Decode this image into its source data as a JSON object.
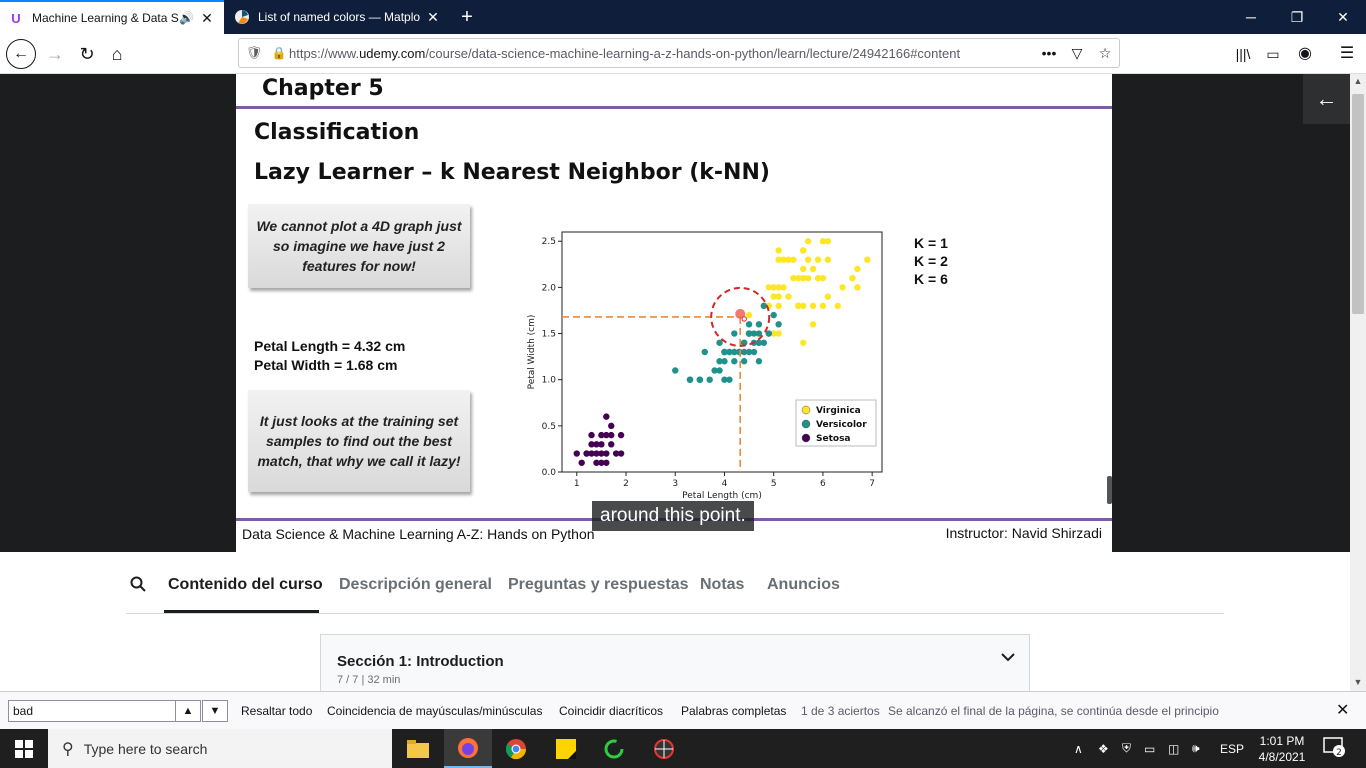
{
  "browser": {
    "tabs": [
      {
        "title": "Machine Learning & Data Sc",
        "favicon": "U",
        "favicon_color": "#a435f0"
      },
      {
        "title": "List of named colors — Matplo",
        "favicon": "matplotlib-icon"
      }
    ],
    "url_prefix": "https://www.",
    "url_host": "udemy.com",
    "url_path": "/course/data-science-machine-learning-a-z-hands-on-python/learn/lecture/24942166#content",
    "more_label": "•••"
  },
  "slide": {
    "chapter": "Chapter 5",
    "title": "Classification",
    "subtitle": "Lazy Learner – k Nearest Neighbor (k-NN)",
    "callout1": "We cannot plot a 4D graph just so imagine we have just 2 features for now!",
    "petal_length": "Petal Length = 4.32 cm",
    "petal_width": "Petal Width = 1.68 cm",
    "callout2": "It just looks at the training set samples to find out the best match, that why we call it lazy!",
    "k_values": [
      "K = 1",
      "K = 2",
      "K = 6"
    ],
    "footer_left": "Data Science & Machine Learning A-Z: Hands on Python",
    "footer_right": "Instructor: Navid Shirzadi"
  },
  "chart_data": {
    "type": "scatter",
    "xlabel": "Petal Length (cm)",
    "ylabel": "Petal Width (cm)",
    "xlim": [
      0.7,
      7.2
    ],
    "ylim": [
      0.0,
      2.6
    ],
    "xticks": [
      "1",
      "2",
      "3",
      "4",
      "5",
      "6",
      "7"
    ],
    "yticks": [
      "0.0",
      "0.5",
      "1.0",
      "1.5",
      "2.0",
      "2.5"
    ],
    "legend_position": "lower-right",
    "query_point": {
      "x": 4.32,
      "y": 1.68
    },
    "series": [
      {
        "name": "Virginica",
        "color": "#fde725",
        "points": [
          [
            6.0,
            2.5
          ],
          [
            5.1,
            1.9
          ],
          [
            5.9,
            2.1
          ],
          [
            5.6,
            1.8
          ],
          [
            5.8,
            2.2
          ],
          [
            6.6,
            2.1
          ],
          [
            4.5,
            1.7
          ],
          [
            6.3,
            1.8
          ],
          [
            5.8,
            1.8
          ],
          [
            6.1,
            2.5
          ],
          [
            5.1,
            2.0
          ],
          [
            5.3,
            1.9
          ],
          [
            5.5,
            2.1
          ],
          [
            5.0,
            2.0
          ],
          [
            5.1,
            2.4
          ],
          [
            5.3,
            2.3
          ],
          [
            5.5,
            1.8
          ],
          [
            6.7,
            2.2
          ],
          [
            6.9,
            2.3
          ],
          [
            5.0,
            1.5
          ],
          [
            5.7,
            2.3
          ],
          [
            4.9,
            2.0
          ],
          [
            6.7,
            2.0
          ],
          [
            4.9,
            1.8
          ],
          [
            5.7,
            2.1
          ],
          [
            6.0,
            1.8
          ],
          [
            4.8,
            1.8
          ],
          [
            4.9,
            1.8
          ],
          [
            5.6,
            2.1
          ],
          [
            5.8,
            1.6
          ],
          [
            6.1,
            1.9
          ],
          [
            6.4,
            2.0
          ],
          [
            5.6,
            2.2
          ],
          [
            5.1,
            1.5
          ],
          [
            5.6,
            1.4
          ],
          [
            6.1,
            2.3
          ],
          [
            5.6,
            2.4
          ],
          [
            5.5,
            1.8
          ],
          [
            4.8,
            1.8
          ],
          [
            5.4,
            2.1
          ],
          [
            5.6,
            2.4
          ],
          [
            5.1,
            2.3
          ],
          [
            5.9,
            2.3
          ],
          [
            5.7,
            2.5
          ],
          [
            5.2,
            2.3
          ],
          [
            5.0,
            1.9
          ],
          [
            5.2,
            2.0
          ],
          [
            5.4,
            2.3
          ],
          [
            5.1,
            1.8
          ],
          [
            6.0,
            2.1
          ]
        ]
      },
      {
        "name": "Versicolor",
        "color": "#21918c",
        "points": [
          [
            4.7,
            1.4
          ],
          [
            4.5,
            1.5
          ],
          [
            4.9,
            1.5
          ],
          [
            4.0,
            1.3
          ],
          [
            4.6,
            1.5
          ],
          [
            4.5,
            1.3
          ],
          [
            4.7,
            1.6
          ],
          [
            3.3,
            1.0
          ],
          [
            4.6,
            1.3
          ],
          [
            3.9,
            1.4
          ],
          [
            3.5,
            1.0
          ],
          [
            4.2,
            1.5
          ],
          [
            4.0,
            1.0
          ],
          [
            4.7,
            1.4
          ],
          [
            3.6,
            1.3
          ],
          [
            4.4,
            1.4
          ],
          [
            4.5,
            1.5
          ],
          [
            4.1,
            1.0
          ],
          [
            4.5,
            1.5
          ],
          [
            3.9,
            1.1
          ],
          [
            4.8,
            1.8
          ],
          [
            4.0,
            1.3
          ],
          [
            4.9,
            1.5
          ],
          [
            4.7,
            1.2
          ],
          [
            4.3,
            1.3
          ],
          [
            4.4,
            1.4
          ],
          [
            4.8,
            1.4
          ],
          [
            5.0,
            1.7
          ],
          [
            4.5,
            1.5
          ],
          [
            3.5,
            1.0
          ],
          [
            3.8,
            1.1
          ],
          [
            3.7,
            1.0
          ],
          [
            3.9,
            1.2
          ],
          [
            5.1,
            1.6
          ],
          [
            4.5,
            1.5
          ],
          [
            4.5,
            1.6
          ],
          [
            4.7,
            1.5
          ],
          [
            4.4,
            1.3
          ],
          [
            4.1,
            1.3
          ],
          [
            4.0,
            1.3
          ],
          [
            4.4,
            1.2
          ],
          [
            4.6,
            1.4
          ],
          [
            4.0,
            1.2
          ],
          [
            3.3,
            1.0
          ],
          [
            4.2,
            1.3
          ],
          [
            4.2,
            1.2
          ],
          [
            4.2,
            1.3
          ],
          [
            4.3,
            1.3
          ],
          [
            3.0,
            1.1
          ],
          [
            4.1,
            1.3
          ]
        ]
      },
      {
        "name": "Setosa",
        "color": "#440154",
        "points": [
          [
            1.4,
            0.2
          ],
          [
            1.3,
            0.2
          ],
          [
            1.5,
            0.2
          ],
          [
            1.7,
            0.4
          ],
          [
            1.4,
            0.3
          ],
          [
            1.5,
            0.1
          ],
          [
            1.6,
            0.2
          ],
          [
            1.1,
            0.1
          ],
          [
            1.2,
            0.2
          ],
          [
            1.3,
            0.4
          ],
          [
            1.7,
            0.3
          ],
          [
            1.9,
            0.2
          ],
          [
            1.6,
            0.4
          ],
          [
            1.0,
            0.2
          ],
          [
            1.9,
            0.4
          ],
          [
            1.6,
            0.6
          ],
          [
            1.5,
            0.3
          ],
          [
            1.4,
            0.1
          ],
          [
            1.2,
            0.2
          ],
          [
            1.3,
            0.3
          ],
          [
            1.6,
            0.1
          ],
          [
            1.5,
            0.4
          ],
          [
            1.7,
            0.5
          ],
          [
            1.8,
            0.2
          ]
        ]
      }
    ]
  },
  "caption": "around this point.",
  "course": {
    "tabs": [
      "Contenido del curso",
      "Descripción general",
      "Preguntas y respuestas",
      "Notas",
      "Anuncios"
    ],
    "section_title": "Sección 1: Introduction",
    "section_meta": "7 / 7 | 32 min"
  },
  "findbar": {
    "query": "bad",
    "highlight_all": "Resaltar todo",
    "match_case": "Coincidencia de mayúsculas/minúsculas",
    "match_diacritics": "Coincidir diacríticos",
    "whole_words": "Palabras completas",
    "result_count": "1 de 3 aciertos",
    "wrap_message": "Se alcanzó el final de la página, se continúa desde el principio"
  },
  "taskbar": {
    "search_placeholder": "Type here to search",
    "language": "ESP",
    "time": "1:01 PM",
    "date": "4/8/2021",
    "notification_count": "2"
  }
}
